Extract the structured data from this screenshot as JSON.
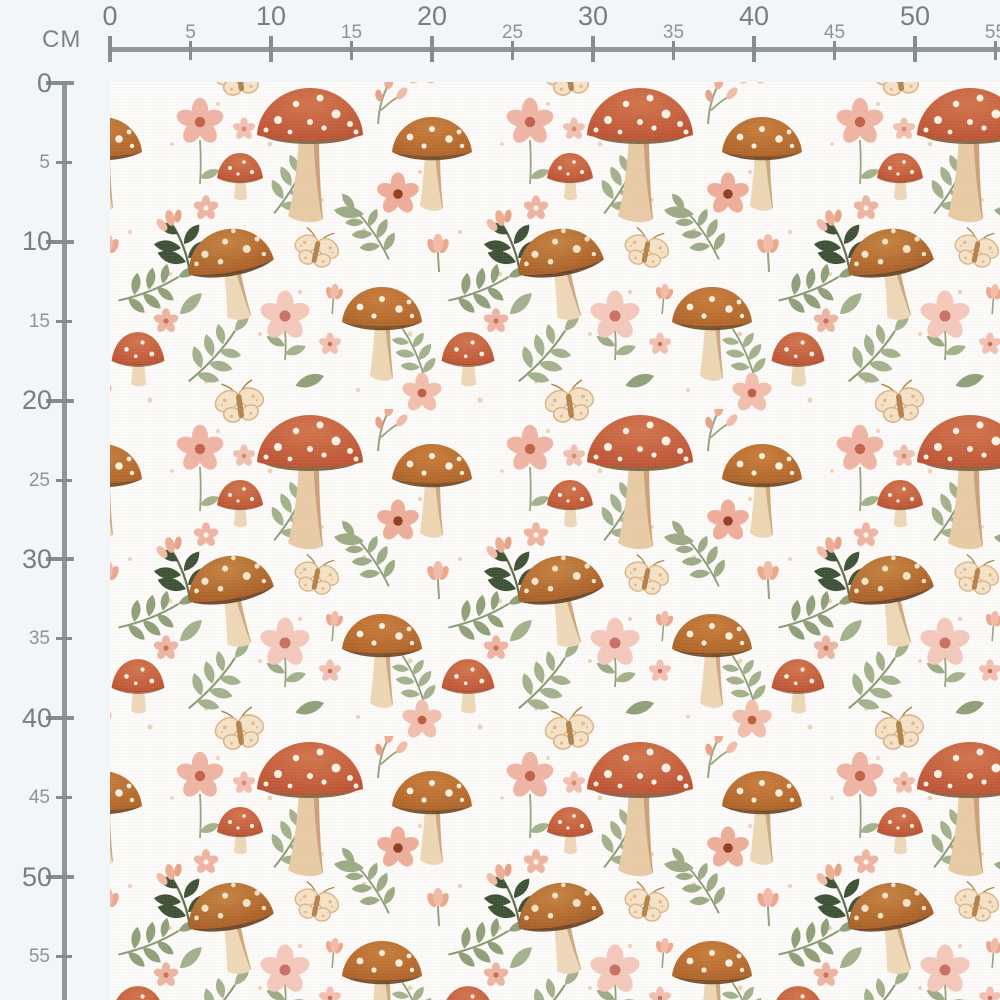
{
  "ruler": {
    "unit_label": "CM",
    "top": {
      "ticks": [
        {
          "cm": 0,
          "label": "0"
        },
        {
          "cm": 5,
          "label": "5"
        },
        {
          "cm": 10,
          "label": "10"
        },
        {
          "cm": 15,
          "label": "15"
        },
        {
          "cm": 20,
          "label": "20"
        },
        {
          "cm": 25,
          "label": "25"
        },
        {
          "cm": 30,
          "label": "30"
        },
        {
          "cm": 35,
          "label": "35"
        },
        {
          "cm": 40,
          "label": "40"
        },
        {
          "cm": 45,
          "label": "45"
        },
        {
          "cm": 50,
          "label": "50"
        },
        {
          "cm": 55,
          "label": "55"
        }
      ]
    },
    "left": {
      "ticks": [
        {
          "cm": 0,
          "label": "0"
        },
        {
          "cm": 5,
          "label": "5"
        },
        {
          "cm": 10,
          "label": "10"
        },
        {
          "cm": 15,
          "label": "15"
        },
        {
          "cm": 20,
          "label": "20"
        },
        {
          "cm": 25,
          "label": "25"
        },
        {
          "cm": 30,
          "label": "30"
        },
        {
          "cm": 35,
          "label": "35"
        },
        {
          "cm": 40,
          "label": "40"
        },
        {
          "cm": 45,
          "label": "45"
        },
        {
          "cm": 50,
          "label": "50"
        },
        {
          "cm": 55,
          "label": "55"
        }
      ]
    }
  },
  "fabric": {
    "description": "Seamless watercolor pattern swatch with toadstool mushrooms, pink flowers, butterflies and sage leaves on white fabric",
    "motifs": [
      "red-toadstool-mushroom",
      "brown-spotted-mushroom",
      "orange-spotted-mushroom",
      "small-red-mushroom",
      "pink-five-petal-flower",
      "pink-tulip-bud",
      "butterfly",
      "sage-leaf-sprig",
      "dark-green-leaf-branch",
      "scatter-dots"
    ],
    "colors": {
      "fabric_background": "#fdfcfa",
      "page_background": "#f3f6f8",
      "ruler_gray": "#848d93",
      "ruler_text": "#767f85",
      "cap_red": "#c2583a",
      "cap_brown": "#b3662c",
      "cap_orange": "#b96b30",
      "cap_small_red": "#c1532e",
      "cap_dots": "#fcf4e7",
      "gills_brown": "#8a6746",
      "stem_cream": "#e9cba6",
      "stem_shadow": "#c9996d",
      "petal_pink": "#f4c2b1",
      "petal_salmon": "#efae9a",
      "flower_center_rose": "#c2614a",
      "flower_center_dark": "#8f3c20",
      "bud_pink": "#efae93",
      "sage_green": "#a3b18c",
      "sage_dark": "#87976e",
      "forest_green": "#3c5136",
      "butterfly_wing": "#f6e3c8",
      "butterfly_outline": "#dcb488",
      "butterfly_body": "#b5824a",
      "speckle_tan": "#ecc9a4"
    }
  }
}
